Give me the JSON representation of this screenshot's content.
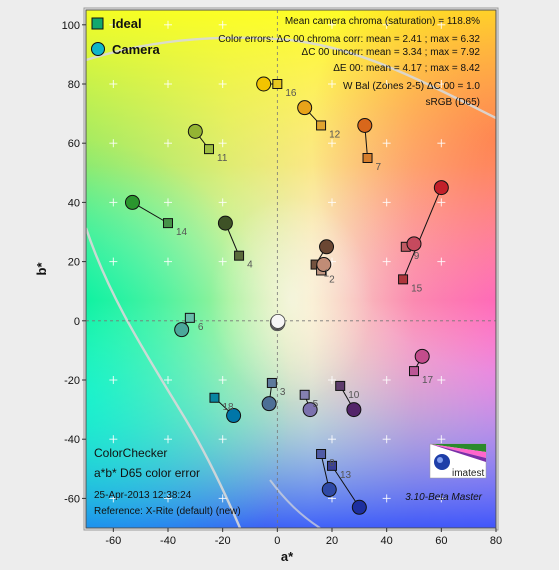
{
  "chart_data": {
    "type": "scatter",
    "title": "ColorChecker",
    "subtitle": "a*b* D65 color error",
    "timestamp": "25-Apr-2013 12:38:24",
    "reference": "Reference: X-Rite (default) (new)",
    "software": "3.10-Beta  Master",
    "xlabel": "a*",
    "ylabel": "b*",
    "xlim": [
      -70,
      80
    ],
    "ylim": [
      -70,
      105
    ],
    "xticks": [
      -60,
      -40,
      -20,
      0,
      20,
      40,
      60,
      80
    ],
    "yticks": [
      -60,
      -40,
      -20,
      0,
      20,
      40,
      60,
      80,
      100
    ],
    "grid": "crosses",
    "legend": {
      "position": "top-left",
      "entries": [
        "Ideal",
        "Camera"
      ]
    },
    "stats": [
      "Mean camera chroma (saturation) = 118.8%",
      "Color errors: ΔC 00 chroma corr:  mean = 2.41 ;  max = 6.32",
      "ΔC 00 uncorr:  mean = 3.34 ;  max = 7.92",
      "ΔE 00:  mean = 4.17 ;  max = 8.42",
      "W Bal (Zones 2-5) ΔC 00 = 1.0",
      "sRGB (D65)"
    ],
    "patches": [
      {
        "id": "1",
        "ideal": [
          14,
          19
        ],
        "camera": [
          18,
          25
        ],
        "ideal_color": "#73523f",
        "camera_color": "#6b4733"
      },
      {
        "id": "2",
        "ideal": [
          16,
          17
        ],
        "camera": [
          17,
          19
        ],
        "ideal_color": "#c09682",
        "camera_color": "#c08c76"
      },
      {
        "id": "3",
        "ideal": -1,
        "camera": -1,
        "ideal_color": "#5e7a9c",
        "camera_color": "#4d6f96"
      },
      {
        "id": "4",
        "ideal": [
          -14,
          22
        ],
        "camera": [
          -19,
          33
        ],
        "ideal_color": "#5a6b3b",
        "camera_color": "#3e5226"
      },
      {
        "id": "5",
        "ideal": [
          10,
          -25
        ],
        "camera": [
          12,
          -30
        ],
        "ideal_color": "#8580b1",
        "camera_color": "#7c72ae"
      },
      {
        "id": "6",
        "ideal": [
          -32,
          1
        ],
        "camera": [
          -35,
          -3
        ],
        "ideal_color": "#68bdaa",
        "camera_color": "#4ba89a"
      },
      {
        "id": "7",
        "ideal": [
          33,
          55
        ],
        "camera": [
          32,
          66
        ],
        "ideal_color": "#d67e2c",
        "camera_color": "#d8671b"
      },
      {
        "id": "8",
        "ideal": [
          16,
          -45
        ],
        "camera": [
          19,
          -57
        ],
        "ideal_color": "#505ba6",
        "camera_color": "#2f49a6"
      },
      {
        "id": "9",
        "ideal": [
          47,
          25
        ],
        "camera": [
          50,
          26
        ],
        "ideal_color": "#c15a63",
        "camera_color": "#c64a5e"
      },
      {
        "id": "10",
        "ideal": [
          23,
          -22
        ],
        "camera": [
          28,
          -30
        ],
        "ideal_color": "#5e3c6c",
        "camera_color": "#53246a"
      },
      {
        "id": "11",
        "ideal": [
          -25,
          58
        ],
        "camera": [
          -30,
          64
        ],
        "ideal_color": "#9dbc40",
        "camera_color": "#94b433"
      },
      {
        "id": "12",
        "ideal": [
          16,
          66
        ],
        "camera": [
          10,
          72
        ],
        "ideal_color": "#e0a32e",
        "camera_color": "#e8a319"
      },
      {
        "id": "13",
        "ideal": [
          20,
          -49
        ],
        "camera": [
          30,
          -63
        ],
        "ideal_color": "#383d96",
        "camera_color": "#1d2fa0"
      },
      {
        "id": "14",
        "ideal": [
          -40,
          33
        ],
        "camera": [
          -53,
          40
        ],
        "ideal_color": "#469449",
        "camera_color": "#2a962e"
      },
      {
        "id": "15",
        "ideal": [
          46,
          14
        ],
        "camera": [
          60,
          45
        ],
        "ideal_color": "#af363c",
        "camera_color": "#c3202a"
      },
      {
        "id": "16",
        "ideal": [
          0,
          80
        ],
        "camera": [
          -5,
          80
        ],
        "ideal_color": "#e7c71f",
        "camera_color": "#f2c400"
      },
      {
        "id": "17",
        "ideal": [
          50,
          -17
        ],
        "camera": [
          53,
          -12
        ],
        "ideal_color": "#bb5695",
        "camera_color": "#c34c8c"
      },
      {
        "id": "18",
        "ideal": [
          -23,
          -26
        ],
        "camera": [
          -16,
          -32
        ],
        "ideal_color": "#0885a1",
        "camera_color": "#0076a8"
      }
    ],
    "neutral_point": [
      0,
      -1
    ],
    "gamut_boundary": "sRGB",
    "logo_text": "imatest"
  }
}
